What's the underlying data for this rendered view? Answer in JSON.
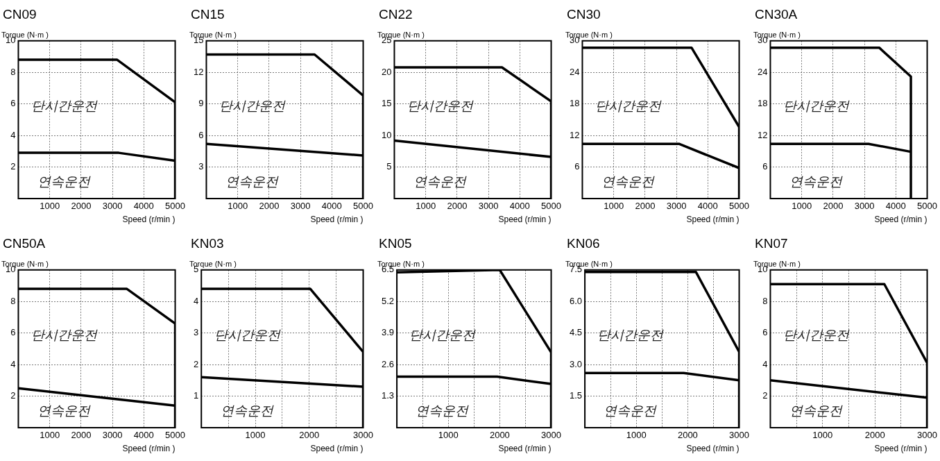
{
  "chart_data": [
    {
      "type": "line",
      "title": "CN09",
      "xlabel": "Speed (r/min )",
      "ylabel": "Torque (N·m )",
      "annotations": [
        "단시간운전",
        "연속운전"
      ],
      "xlim": [
        0,
        5000
      ],
      "xticks": [
        1000,
        2000,
        3000,
        4000,
        5000
      ],
      "ylim": [
        0,
        10
      ],
      "yticks": [
        2,
        4,
        6,
        8,
        10
      ],
      "grid": true,
      "legend": false,
      "marker": "none",
      "line_style": "solid",
      "series": [
        {
          "color": "#000000",
          "x": [
            0,
            3150,
            5000,
            5000
          ],
          "values": [
            8.8,
            8.8,
            6.1,
            0
          ]
        },
        {
          "color": "#000000",
          "x": [
            0,
            3200,
            5000
          ],
          "values": [
            2.9,
            2.9,
            2.4
          ]
        }
      ]
    },
    {
      "type": "line",
      "title": "CN15",
      "xlabel": "Speed (r/min )",
      "ylabel": "Torque (N·m )",
      "annotations": [
        "단시간운전",
        "연속운전"
      ],
      "xlim": [
        0,
        5000
      ],
      "xticks": [
        1000,
        2000,
        3000,
        4000,
        5000
      ],
      "ylim": [
        0,
        15
      ],
      "yticks": [
        3,
        6,
        9,
        12,
        15
      ],
      "grid": true,
      "legend": false,
      "marker": "none",
      "line_style": "solid",
      "series": [
        {
          "color": "#000000",
          "x": [
            0,
            3450,
            5000,
            5000
          ],
          "values": [
            13.7,
            13.7,
            9.8,
            0
          ]
        },
        {
          "color": "#000000",
          "x": [
            0,
            5000
          ],
          "values": [
            5.2,
            4.1
          ]
        }
      ]
    },
    {
      "type": "line",
      "title": "CN22",
      "xlabel": "Speed (r/min )",
      "ylabel": "Torque (N·m )",
      "annotations": [
        "단시간운전",
        "연속운전"
      ],
      "xlim": [
        0,
        5000
      ],
      "xticks": [
        1000,
        2000,
        3000,
        4000,
        5000
      ],
      "ylim": [
        0,
        25
      ],
      "yticks": [
        5,
        10,
        15,
        20,
        25
      ],
      "grid": true,
      "legend": false,
      "marker": "none",
      "line_style": "solid",
      "series": [
        {
          "color": "#000000",
          "x": [
            0,
            3430,
            5000,
            5000
          ],
          "values": [
            20.8,
            20.8,
            15.4,
            0
          ]
        },
        {
          "color": "#000000",
          "x": [
            0,
            5000
          ],
          "values": [
            9.2,
            6.6
          ]
        }
      ]
    },
    {
      "type": "line",
      "title": "CN30",
      "xlabel": "Speed (r/min )",
      "ylabel": "Torque (N·m )",
      "annotations": [
        "단시간운전",
        "연속운전"
      ],
      "xlim": [
        0,
        5000
      ],
      "xticks": [
        1000,
        2000,
        3000,
        4000,
        5000
      ],
      "ylim": [
        0,
        30
      ],
      "yticks": [
        6,
        12,
        18,
        24,
        30
      ],
      "grid": true,
      "legend": false,
      "marker": "none",
      "line_style": "solid",
      "series": [
        {
          "color": "#000000",
          "x": [
            0,
            3480,
            5000,
            5000
          ],
          "values": [
            28.7,
            28.7,
            13.6,
            0
          ]
        },
        {
          "color": "#000000",
          "x": [
            0,
            3080,
            5000
          ],
          "values": [
            10.4,
            10.4,
            5.8
          ]
        }
      ]
    },
    {
      "type": "line",
      "title": "CN30A",
      "xlabel": "Speed (r/min )",
      "ylabel": "Torque (N·m )",
      "annotations": [
        "단시간운전",
        "연속운전"
      ],
      "xlim": [
        0,
        5000
      ],
      "xticks": [
        1000,
        2000,
        3000,
        4000,
        5000
      ],
      "ylim": [
        0,
        30
      ],
      "yticks": [
        6,
        12,
        18,
        24,
        30
      ],
      "grid": true,
      "legend": false,
      "marker": "none",
      "line_style": "solid",
      "series": [
        {
          "color": "#000000",
          "x": [
            0,
            3470,
            4480,
            4480
          ],
          "values": [
            28.7,
            28.7,
            23.2,
            0
          ]
        },
        {
          "color": "#000000",
          "x": [
            0,
            3130,
            4480
          ],
          "values": [
            10.4,
            10.4,
            8.9
          ]
        }
      ]
    },
    {
      "type": "line",
      "title": "CN50A",
      "xlabel": "Speed (r/min )",
      "ylabel": "Torque (N·m )",
      "annotations": [
        "단시간운전",
        "연속운전"
      ],
      "xlim": [
        0,
        5000
      ],
      "xticks": [
        1000,
        2000,
        3000,
        4000,
        5000
      ],
      "ylim": [
        0,
        10
      ],
      "yticks": [
        2,
        4,
        6,
        8,
        10
      ],
      "grid": true,
      "legend": false,
      "marker": "none",
      "line_style": "solid",
      "series": [
        {
          "color": "#000000",
          "x": [
            0,
            3460,
            5000,
            5000
          ],
          "values": [
            8.8,
            8.8,
            6.6,
            0
          ]
        },
        {
          "color": "#000000",
          "x": [
            0,
            5000
          ],
          "values": [
            2.5,
            1.4
          ]
        }
      ]
    },
    {
      "type": "line",
      "title": "KN03",
      "xlabel": "Speed (r/min )",
      "ylabel": "Torque (N·m )",
      "annotations": [
        "단시간운전",
        "연속운전"
      ],
      "xlim": [
        0,
        3000
      ],
      "xticks": [
        {
          "value": 500,
          "label": null
        },
        1000,
        {
          "value": 1500,
          "label": null
        },
        2000,
        {
          "value": 2500,
          "label": null
        },
        3000
      ],
      "ylim": [
        0,
        5
      ],
      "yticks": [
        1,
        2,
        3,
        4,
        5
      ],
      "grid": true,
      "legend": false,
      "marker": "none",
      "line_style": "solid",
      "series": [
        {
          "color": "#000000",
          "x": [
            0,
            2020,
            3000,
            3000
          ],
          "values": [
            4.4,
            4.4,
            2.4,
            0
          ]
        },
        {
          "color": "#000000",
          "x": [
            0,
            3000
          ],
          "values": [
            1.6,
            1.3
          ]
        }
      ]
    },
    {
      "type": "line",
      "title": "KN05",
      "xlabel": "Speed (r/min )",
      "ylabel": "Torque (N·m )",
      "annotations": [
        "단시간운전",
        "연속운전"
      ],
      "xlim": [
        0,
        3000
      ],
      "xticks": [
        {
          "value": 500,
          "label": null
        },
        1000,
        {
          "value": 1500,
          "label": null
        },
        2000,
        {
          "value": 2500,
          "label": null
        },
        3000
      ],
      "ylim": [
        0,
        6.5
      ],
      "yticks": [
        1.3,
        2.6,
        3.9,
        5.2,
        6.5
      ],
      "grid": true,
      "legend": false,
      "marker": "none",
      "line_style": "solid",
      "series": [
        {
          "color": "#000000",
          "x": [
            0,
            2000,
            3000,
            3000
          ],
          "values": [
            6.4,
            6.5,
            3.1,
            0
          ]
        },
        {
          "color": "#000000",
          "x": [
            0,
            1950,
            3000
          ],
          "values": [
            2.1,
            2.1,
            1.8
          ]
        }
      ]
    },
    {
      "type": "line",
      "title": "KN06",
      "xlabel": "Speed (r/min )",
      "ylabel": "Torque (N·m )",
      "annotations": [
        "단시간운전",
        "연속운전"
      ],
      "xlim": [
        0,
        3000
      ],
      "xticks": [
        {
          "value": 500,
          "label": null
        },
        1000,
        {
          "value": 1500,
          "label": null
        },
        2000,
        {
          "value": 2500,
          "label": null
        },
        3000
      ],
      "ylim": [
        0,
        7.5
      ],
      "yticks": [
        {
          "value": 1.5,
          "label": "1.5"
        },
        {
          "value": 3,
          "label": "3.0"
        },
        {
          "value": 4.5,
          "label": "4.5"
        },
        {
          "value": 6,
          "label": "6.0"
        },
        {
          "value": 7.5,
          "label": "7.5"
        }
      ],
      "grid": true,
      "legend": false,
      "marker": "none",
      "line_style": "solid",
      "series": [
        {
          "color": "#000000",
          "x": [
            0,
            2160,
            3000,
            3000
          ],
          "values": [
            7.4,
            7.4,
            3.6,
            0
          ]
        },
        {
          "color": "#000000",
          "x": [
            0,
            1920,
            3000
          ],
          "values": [
            2.6,
            2.6,
            2.25
          ]
        }
      ]
    },
    {
      "type": "line",
      "title": "KN07",
      "xlabel": "Speed (r/min )",
      "ylabel": "Torque (N·m )",
      "annotations": [
        "단시간운전",
        "연속운전"
      ],
      "xlim": [
        0,
        3000
      ],
      "xticks": [
        {
          "value": 500,
          "label": null
        },
        1000,
        {
          "value": 1500,
          "label": null
        },
        2000,
        {
          "value": 2500,
          "label": null
        },
        3000
      ],
      "ylim": [
        0,
        10
      ],
      "yticks": [
        2,
        4,
        6,
        8,
        10
      ],
      "grid": true,
      "legend": false,
      "marker": "none",
      "line_style": "solid",
      "series": [
        {
          "color": "#000000",
          "x": [
            0,
            2180,
            3000,
            3000
          ],
          "values": [
            9.1,
            9.1,
            4.1,
            0
          ]
        },
        {
          "color": "#000000",
          "x": [
            0,
            3000
          ],
          "values": [
            3.0,
            1.9
          ]
        }
      ]
    }
  ]
}
